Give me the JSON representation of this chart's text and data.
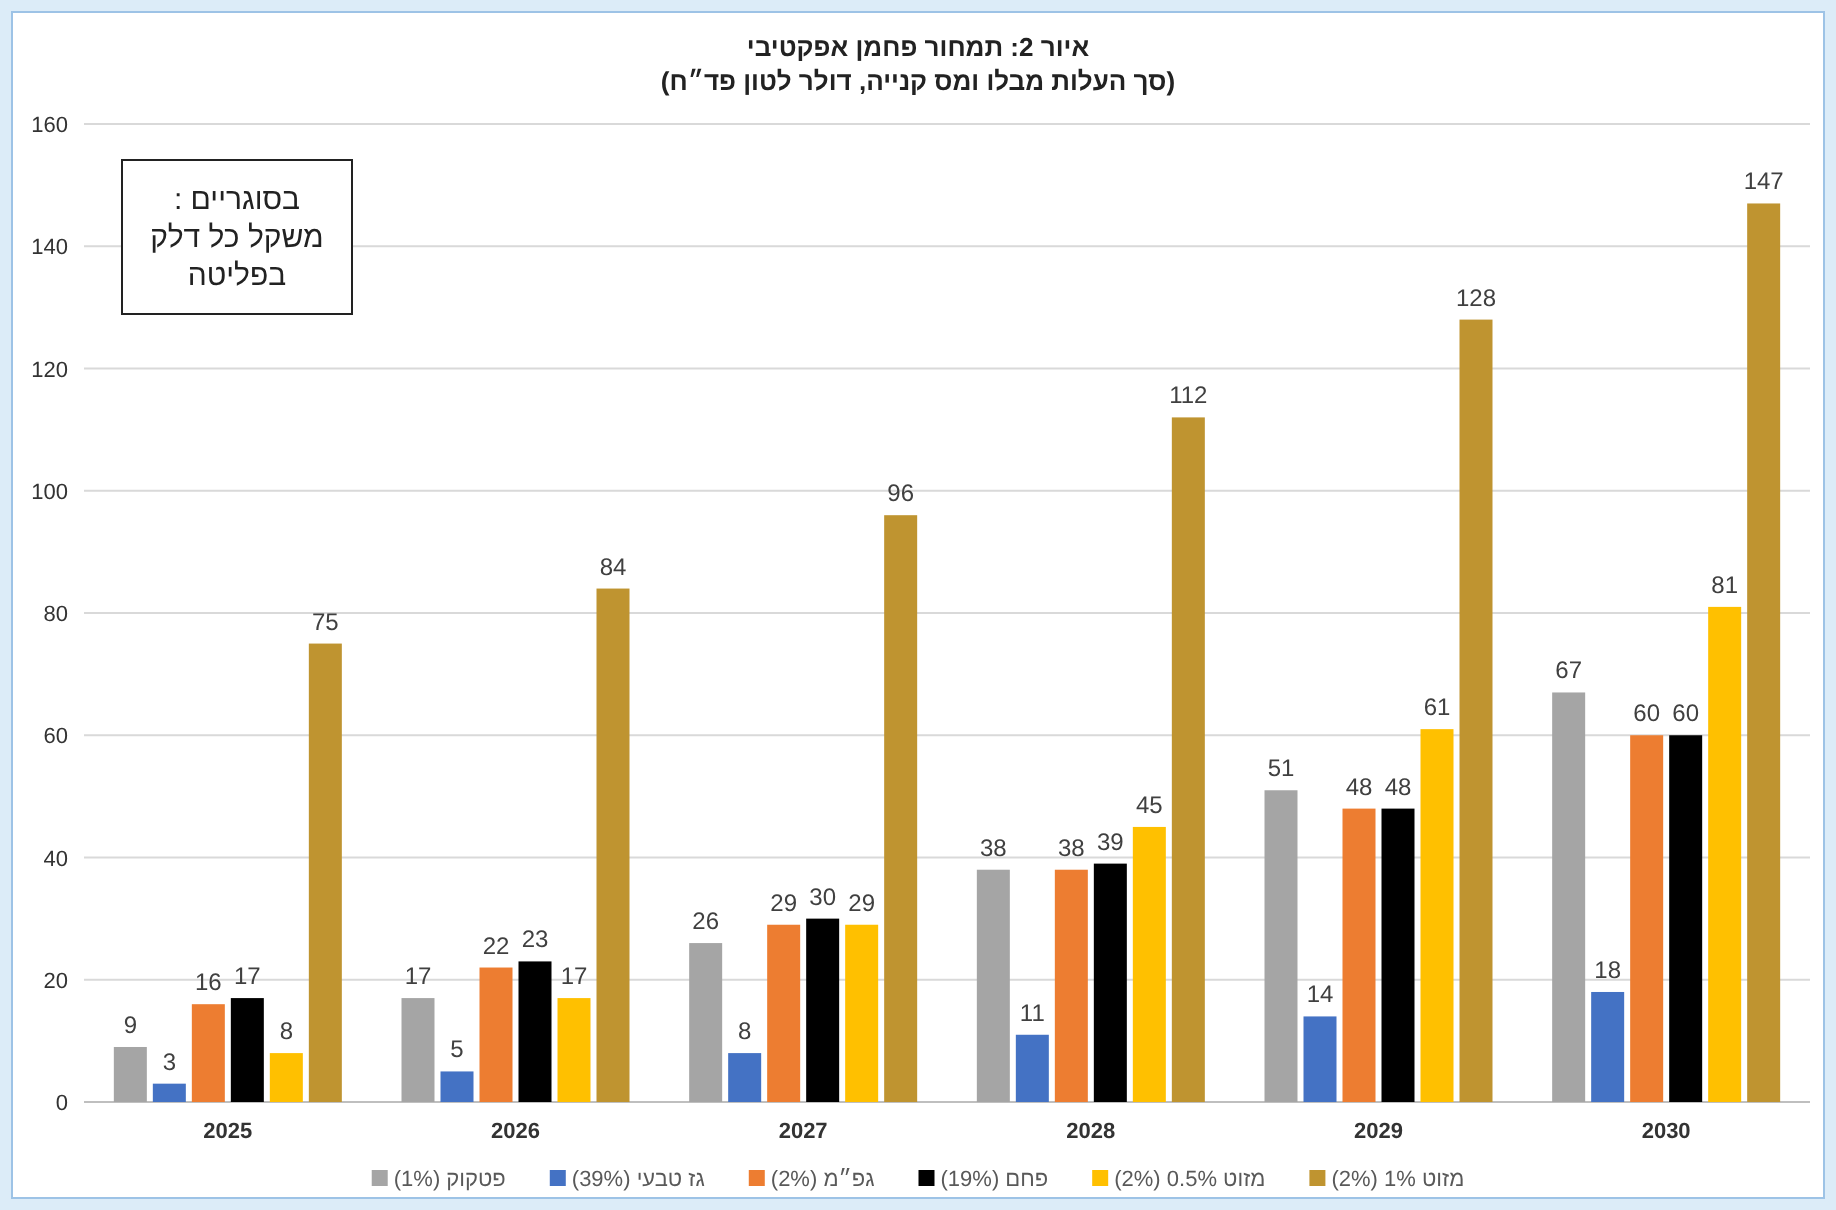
{
  "chart_data": {
    "type": "bar",
    "title": "איור 2: תמחור פחמן אפקטיבי",
    "subtitle": "(סך העלות מבלו ומס קנייה, דולר לטון פד״ח)",
    "annotations": [
      "בסוגריים : משקל כל דלק בפליטה"
    ],
    "categories": [
      "2025",
      "2026",
      "2027",
      "2028",
      "2029",
      "2030"
    ],
    "series": [
      {
        "name": "פטקוק (1%)",
        "color": "#a5a5a5",
        "values": [
          9,
          17,
          26,
          38,
          51,
          67
        ]
      },
      {
        "name": "גז טבעי (39%)",
        "color": "#4472c4",
        "values": [
          3,
          5,
          8,
          11,
          14,
          18
        ]
      },
      {
        "name": "גפ״מ (2%)",
        "color": "#ed7d31",
        "values": [
          16,
          22,
          29,
          38,
          48,
          60
        ]
      },
      {
        "name": "פחם (19%)",
        "color": "#000000",
        "values": [
          17,
          23,
          30,
          39,
          48,
          60
        ]
      },
      {
        "name": "מזוט 0.5% (2%)",
        "color": "#ffc000",
        "values": [
          8,
          17,
          29,
          45,
          61,
          81
        ]
      },
      {
        "name": "מזוט 1% (2%)",
        "color": "#bf9430",
        "values": [
          75,
          84,
          96,
          112,
          128,
          147
        ]
      }
    ],
    "ylim": [
      0,
      160
    ],
    "yticks": [
      0,
      20,
      40,
      60,
      80,
      100,
      120,
      140,
      160
    ],
    "grid": "y",
    "legend": "bottom",
    "data_labels": true
  }
}
